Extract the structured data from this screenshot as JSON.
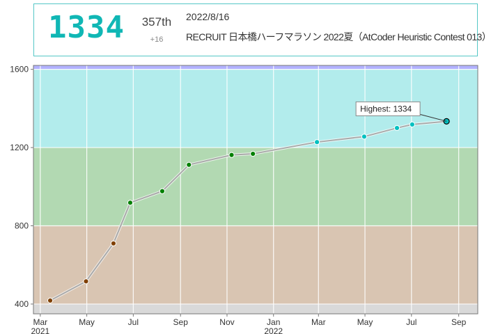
{
  "header": {
    "rating": "1334",
    "place": "357th",
    "diff": "+16",
    "date": "2022/8/16",
    "contest": "RECRUIT 日本橋ハーフマラソン 2022夏（AtCoder Heuristic Contest 013）"
  },
  "tooltip": "Highest: 1334",
  "colors": {
    "band_gray": "#d9d9d9",
    "band_brown": "#d9c5b2",
    "band_green": "#b2d9b2",
    "band_cyan": "#b2ecec",
    "band_blue": "#b2b2ff",
    "dot_brown": "#804000",
    "dot_green": "#008000",
    "dot_cyan": "#00c0c0",
    "line": "#aaaaaa"
  },
  "chart_data": {
    "type": "line",
    "ylim": [
      350,
      1620
    ],
    "xlim": [
      "2021-02-20",
      "2022-09-26"
    ],
    "yticks": [
      400,
      800,
      1200,
      1600
    ],
    "xticks": [
      {
        "date": "2021-03-01",
        "label": "Mar",
        "sub": "2021"
      },
      {
        "date": "2021-05-01",
        "label": "May",
        "sub": ""
      },
      {
        "date": "2021-07-01",
        "label": "Jul",
        "sub": ""
      },
      {
        "date": "2021-09-01",
        "label": "Sep",
        "sub": ""
      },
      {
        "date": "2021-11-01",
        "label": "Nov",
        "sub": ""
      },
      {
        "date": "2022-01-01",
        "label": "Jan",
        "sub": "2022"
      },
      {
        "date": "2022-03-01",
        "label": "Mar",
        "sub": ""
      },
      {
        "date": "2022-05-01",
        "label": "May",
        "sub": ""
      },
      {
        "date": "2022-07-01",
        "label": "Jul",
        "sub": ""
      },
      {
        "date": "2022-09-01",
        "label": "Sep",
        "sub": ""
      }
    ],
    "bands": [
      {
        "from": 0,
        "to": 400,
        "color": "band_gray"
      },
      {
        "from": 400,
        "to": 800,
        "color": "band_brown"
      },
      {
        "from": 800,
        "to": 1200,
        "color": "band_green"
      },
      {
        "from": 1200,
        "to": 1600,
        "color": "band_cyan"
      },
      {
        "from": 1600,
        "to": 2000,
        "color": "band_blue"
      }
    ],
    "series": [
      {
        "points": [
          {
            "x": "2021-03-14",
            "y": 418,
            "color": "dot_brown"
          },
          {
            "x": "2021-04-30",
            "y": 516,
            "color": "dot_brown"
          },
          {
            "x": "2021-06-05",
            "y": 710,
            "color": "dot_brown"
          },
          {
            "x": "2021-06-27",
            "y": 918,
            "color": "dot_green"
          },
          {
            "x": "2021-08-08",
            "y": 977,
            "color": "dot_green"
          },
          {
            "x": "2021-09-12",
            "y": 1112,
            "color": "dot_green"
          },
          {
            "x": "2021-11-07",
            "y": 1162,
            "color": "dot_green"
          },
          {
            "x": "2021-12-05",
            "y": 1168,
            "color": "dot_green"
          },
          {
            "x": "2022-02-27",
            "y": 1228,
            "color": "dot_cyan"
          },
          {
            "x": "2022-04-30",
            "y": 1256,
            "color": "dot_cyan"
          },
          {
            "x": "2022-06-12",
            "y": 1300,
            "color": "dot_cyan"
          },
          {
            "x": "2022-07-02",
            "y": 1318,
            "color": "dot_cyan"
          },
          {
            "x": "2022-08-16",
            "y": 1334,
            "color": "dot_cyan"
          }
        ]
      }
    ]
  }
}
